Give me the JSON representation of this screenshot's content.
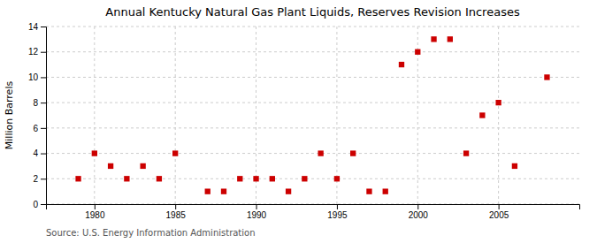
{
  "chart_data": {
    "type": "scatter",
    "title": "Annual Kentucky Natural Gas Plant Liquids, Reserves Revision Increases",
    "ylabel": "Million Barrels",
    "source": "Source: U.S. Energy Information Administration",
    "x": [
      1979,
      1980,
      1981,
      1982,
      1983,
      1984,
      1985,
      1987,
      1988,
      1989,
      1990,
      1991,
      1992,
      1993,
      1994,
      1995,
      1996,
      1997,
      1998,
      1999,
      2000,
      2001,
      2002,
      2003,
      2004,
      2005,
      2006,
      2008
    ],
    "values": [
      2,
      4,
      3,
      2,
      3,
      2,
      4,
      1,
      1,
      2,
      2,
      2,
      1,
      2,
      4,
      2,
      4,
      1,
      1,
      11,
      12,
      13,
      13,
      4,
      7,
      8,
      3,
      10
    ],
    "color": "#cc0000",
    "marker": "square",
    "xlim": [
      1977,
      2010
    ],
    "ylim": [
      0,
      14
    ],
    "xticks": [
      1980,
      1985,
      1990,
      1995,
      2000,
      2005
    ],
    "yticks": [
      0,
      2,
      4,
      6,
      8,
      10,
      12,
      14
    ],
    "grid": true
  }
}
